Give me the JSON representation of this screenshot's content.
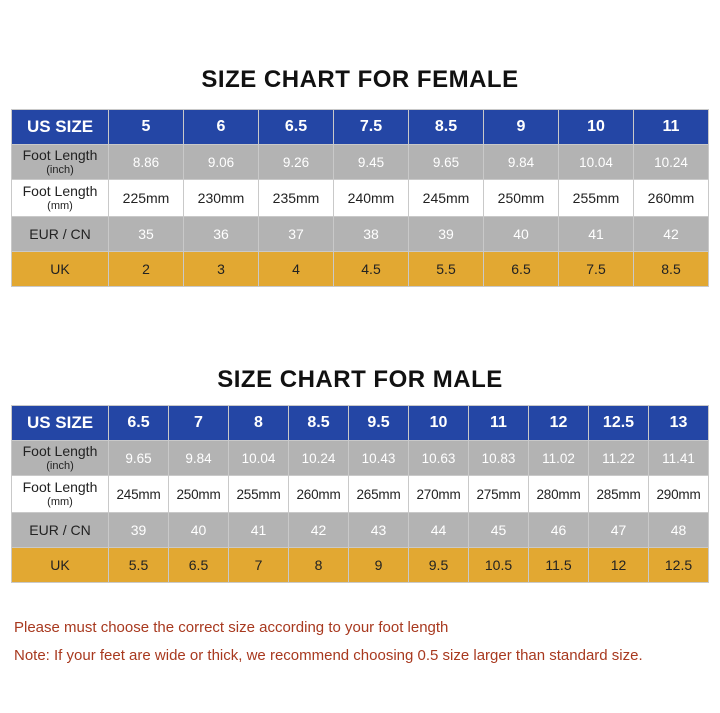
{
  "female": {
    "title": "SIZE CHART FOR FEMALE",
    "labels": {
      "us": "US SIZE",
      "inch_main": "Foot Length",
      "inch_sub": "(inch)",
      "mm_main": "Foot Length",
      "mm_sub": "(mm)",
      "eur": "EUR / CN",
      "uk": "UK"
    },
    "us": [
      "5",
      "6",
      "6.5",
      "7.5",
      "8.5",
      "9",
      "10",
      "11"
    ],
    "inch": [
      "8.86",
      "9.06",
      "9.26",
      "9.45",
      "9.65",
      "9.84",
      "10.04",
      "10.24"
    ],
    "mm": [
      "225mm",
      "230mm",
      "235mm",
      "240mm",
      "245mm",
      "250mm",
      "255mm",
      "260mm"
    ],
    "eur": [
      "35",
      "36",
      "37",
      "38",
      "39",
      "40",
      "41",
      "42"
    ],
    "uk": [
      "2",
      "3",
      "4",
      "4.5",
      "5.5",
      "6.5",
      "7.5",
      "8.5"
    ]
  },
  "male": {
    "title": "SIZE CHART FOR MALE",
    "labels": {
      "us": "US SIZE",
      "inch_main": "Foot Length",
      "inch_sub": "(inch)",
      "mm_main": "Foot Length",
      "mm_sub": "(mm)",
      "eur": "EUR / CN",
      "uk": "UK"
    },
    "us": [
      "6.5",
      "7",
      "8",
      "8.5",
      "9.5",
      "10",
      "11",
      "12",
      "12.5",
      "13"
    ],
    "inch": [
      "9.65",
      "9.84",
      "10.04",
      "10.24",
      "10.43",
      "10.63",
      "10.83",
      "11.02",
      "11.22",
      "11.41"
    ],
    "mm": [
      "245mm",
      "250mm",
      "255mm",
      "260mm",
      "265mm",
      "270mm",
      "275mm",
      "280mm",
      "285mm",
      "290mm"
    ],
    "eur": [
      "39",
      "40",
      "41",
      "42",
      "43",
      "44",
      "45",
      "46",
      "47",
      "48"
    ],
    "uk": [
      "5.5",
      "6.5",
      "7",
      "8",
      "9",
      "9.5",
      "10.5",
      "11.5",
      "12",
      "12.5"
    ]
  },
  "notes": [
    "Please must choose the correct size  according to your foot length",
    "Note: If your feet are wide or thick, we recommend choosing 0.5 size larger than standard size."
  ],
  "colors": {
    "header_blue": "#2446a5",
    "gray_row": "#b3b3b3",
    "uk_row": "#e2a832",
    "note_text": "#a8391f"
  }
}
